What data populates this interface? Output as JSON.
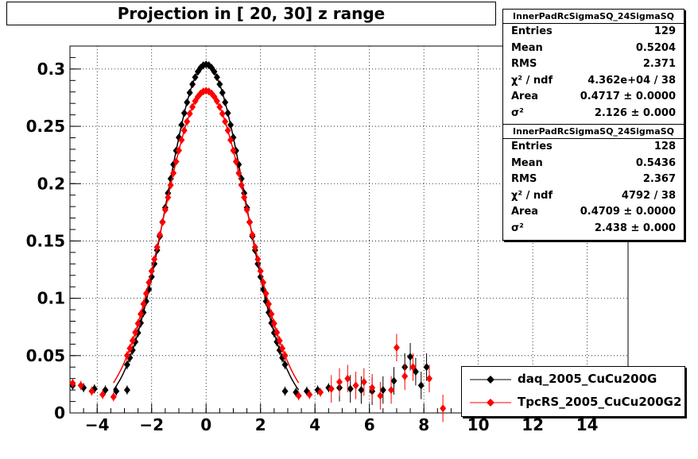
{
  "title": "Projection in [  20,  30] z range",
  "colors": {
    "series1": "#000000",
    "series2": "#ff0000"
  },
  "stats_boxes": [
    {
      "name": "InnerPadRcSigmaSQ_24SigmaSQ",
      "rows": [
        {
          "label": "Entries",
          "value": "129"
        },
        {
          "label": "Mean",
          "value": "0.5204"
        },
        {
          "label": "RMS",
          "value": "2.371"
        },
        {
          "label": "χ² / ndf",
          "value": "4.362e+04 / 38"
        },
        {
          "label": "Area",
          "value": "0.4717 ± 0.0000"
        },
        {
          "label": "σ²",
          "value": "2.126 ± 0.000"
        }
      ]
    },
    {
      "name": "InnerPadRcSigmaSQ_24SigmaSQ",
      "rows": [
        {
          "label": "Entries",
          "value": "128"
        },
        {
          "label": "Mean",
          "value": "0.5436"
        },
        {
          "label": "RMS",
          "value": "2.367"
        },
        {
          "label": "χ² / ndf",
          "value": "4792 / 38"
        },
        {
          "label": "Area",
          "value": "0.4709 ± 0.0000"
        },
        {
          "label": "σ²",
          "value": "2.438 ± 0.000"
        }
      ]
    }
  ],
  "legend": [
    {
      "label": "daq_2005_CuCu200G",
      "color": "#000000"
    },
    {
      "label": "TpcRS_2005_CuCu200G2",
      "color": "#ff0000"
    }
  ],
  "chart_data": {
    "type": "scatter",
    "title": "Projection in [  20,  30] z range",
    "xlim": [
      -5,
      15.5
    ],
    "ylim": [
      0,
      0.32
    ],
    "x_ticks": [
      -4,
      -2,
      0,
      2,
      4,
      6,
      8,
      10,
      12,
      14
    ],
    "x_tick_labels": [
      "−4",
      "−2",
      "0",
      "2",
      "4",
      "6",
      "8",
      "10",
      "12",
      "14"
    ],
    "y_ticks": [
      0,
      0.05,
      0.1,
      0.15,
      0.2,
      0.25,
      0.3
    ],
    "y_tick_labels": [
      "0",
      "0.05",
      "0.1",
      "0.15",
      "0.2",
      "0.25",
      "0.3"
    ],
    "grid": true,
    "series": [
      {
        "name": "daq_2005_CuCu200G",
        "color": "#000000",
        "fit": {
          "amp": 0.304,
          "sigma2": 2.126,
          "mean": 0.0
        },
        "background": [
          {
            "x": -4.9,
            "y": 0.024
          },
          {
            "x": -4.5,
            "y": 0.022
          },
          {
            "x": -4.1,
            "y": 0.021
          },
          {
            "x": -3.7,
            "y": 0.02
          },
          {
            "x": -3.3,
            "y": 0.019
          },
          {
            "x": -2.9,
            "y": 0.02
          },
          {
            "x": 2.9,
            "y": 0.019
          },
          {
            "x": 3.3,
            "y": 0.018
          },
          {
            "x": 3.7,
            "y": 0.019
          },
          {
            "x": 4.1,
            "y": 0.02
          },
          {
            "x": 4.5,
            "y": 0.022
          },
          {
            "x": 4.9,
            "y": 0.022
          },
          {
            "x": 5.3,
            "y": 0.021
          },
          {
            "x": 5.7,
            "y": 0.02
          },
          {
            "x": 6.1,
            "y": 0.019
          },
          {
            "x": 6.5,
            "y": 0.02
          },
          {
            "x": 6.9,
            "y": 0.028
          },
          {
            "x": 7.3,
            "y": 0.04
          },
          {
            "x": 7.5,
            "y": 0.049
          },
          {
            "x": 7.7,
            "y": 0.036
          },
          {
            "x": 7.9,
            "y": 0.024
          },
          {
            "x": 8.1,
            "y": 0.04
          }
        ]
      },
      {
        "name": "TpcRS_2005_CuCu200G2",
        "color": "#ff0000",
        "fit": {
          "amp": 0.281,
          "sigma2": 2.438,
          "mean": 0.0
        },
        "background": [
          {
            "x": -4.9,
            "y": 0.026
          },
          {
            "x": -4.6,
            "y": 0.024
          },
          {
            "x": -4.2,
            "y": 0.019
          },
          {
            "x": -3.8,
            "y": 0.016
          },
          {
            "x": -3.4,
            "y": 0.014
          },
          {
            "x": 3.4,
            "y": 0.015
          },
          {
            "x": 3.8,
            "y": 0.016
          },
          {
            "x": 4.2,
            "y": 0.018
          },
          {
            "x": 4.6,
            "y": 0.021
          },
          {
            "x": 4.9,
            "y": 0.027
          },
          {
            "x": 5.2,
            "y": 0.03
          },
          {
            "x": 5.5,
            "y": 0.024
          },
          {
            "x": 5.8,
            "y": 0.027
          },
          {
            "x": 6.1,
            "y": 0.022
          },
          {
            "x": 6.4,
            "y": 0.015
          },
          {
            "x": 6.8,
            "y": 0.02
          },
          {
            "x": 7.0,
            "y": 0.057
          },
          {
            "x": 7.3,
            "y": 0.032
          },
          {
            "x": 7.6,
            "y": 0.04
          },
          {
            "x": 8.2,
            "y": 0.03
          },
          {
            "x": 8.7,
            "y": 0.004
          }
        ]
      }
    ]
  }
}
